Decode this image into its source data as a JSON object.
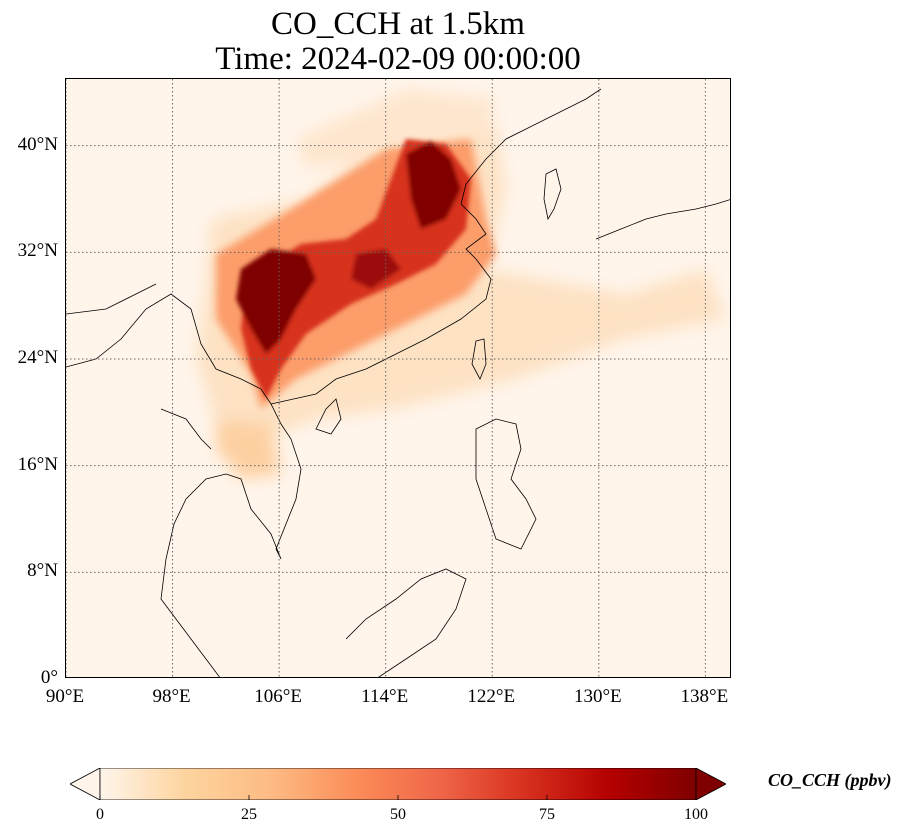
{
  "title": {
    "line1": "CO_CCH at 1.5km",
    "line2": "Time: 2024-02-09 00:00:00"
  },
  "map": {
    "lon_range": [
      90,
      140
    ],
    "lat_range": [
      0,
      45
    ],
    "x_ticks": [
      {
        "value": 90,
        "label": "90°E"
      },
      {
        "value": 98,
        "label": "98°E"
      },
      {
        "value": 106,
        "label": "106°E"
      },
      {
        "value": 114,
        "label": "114°E"
      },
      {
        "value": 122,
        "label": "122°E"
      },
      {
        "value": 130,
        "label": "130°E"
      },
      {
        "value": 138,
        "label": "138°E"
      }
    ],
    "y_ticks": [
      {
        "value": 0,
        "label": "0°"
      },
      {
        "value": 8,
        "label": "8°N"
      },
      {
        "value": 16,
        "label": "16°N"
      },
      {
        "value": 24,
        "label": "24°N"
      },
      {
        "value": 32,
        "label": "32°N"
      },
      {
        "value": 40,
        "label": "40°N"
      }
    ],
    "gridlines": true
  },
  "colorbar": {
    "label": "CO_CCH (ppbv)",
    "min": 0,
    "max": 100,
    "extend": "both",
    "ticks": [
      {
        "value": 0,
        "label": "0"
      },
      {
        "value": 25,
        "label": "25"
      },
      {
        "value": 50,
        "label": "50"
      },
      {
        "value": 75,
        "label": "75"
      },
      {
        "value": 100,
        "label": "100"
      }
    ],
    "colors": [
      "#fff5eb",
      "#fdd49e",
      "#fdbb84",
      "#fc8d59",
      "#ef6548",
      "#d7301f",
      "#b30000",
      "#7f0000"
    ]
  }
}
